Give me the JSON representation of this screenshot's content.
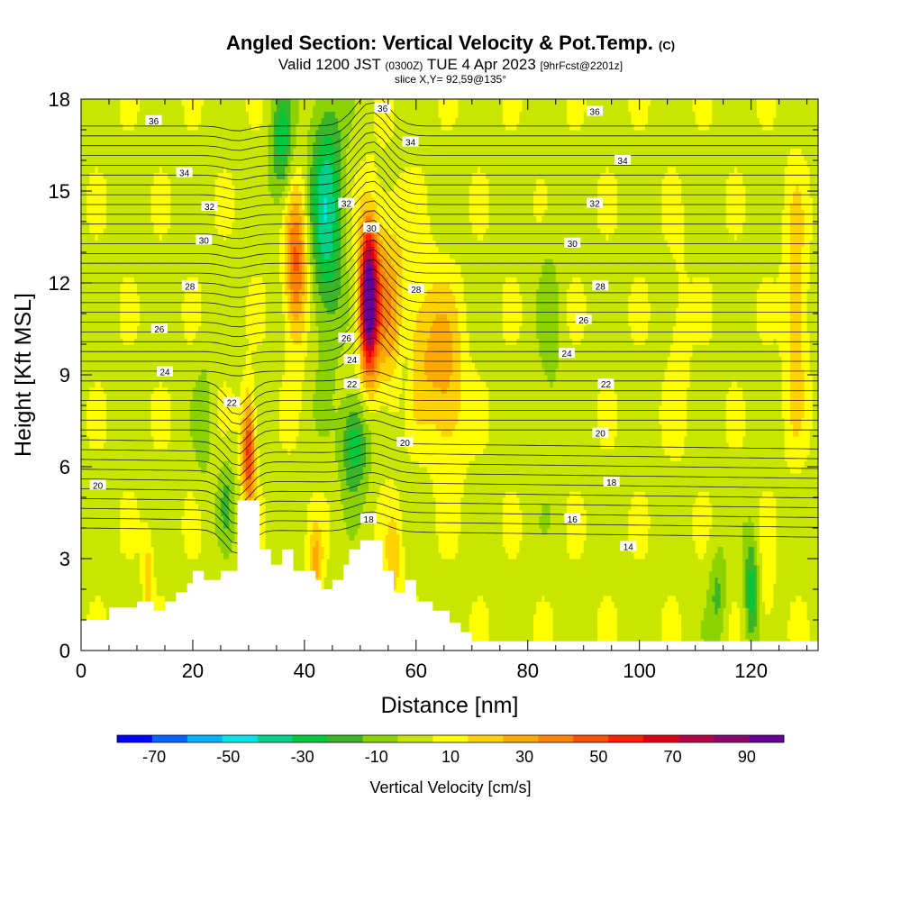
{
  "title": {
    "main": "Angled Section: Vertical Velocity & Pot.Temp.",
    "main_suffix": "(C)",
    "valid_prefix": "Valid 1200 JST",
    "valid_utc": "(0300Z)",
    "valid_date": "TUE 4 Apr 2023",
    "forecast": "[9hrFcst@2201z]",
    "slice": "slice X,Y= 92,59@135°"
  },
  "chart_data": {
    "type": "heatmap",
    "xlabel": "Distance [nm]",
    "ylabel": "Height [Kft MSL]",
    "xlim": [
      0,
      132
    ],
    "ylim": [
      0,
      18
    ],
    "x_ticks": [
      "0",
      "20",
      "40",
      "60",
      "80",
      "100",
      "120"
    ],
    "y_ticks": [
      "0",
      "3",
      "6",
      "9",
      "12",
      "15",
      "18"
    ],
    "x_tick_values": [
      0,
      20,
      40,
      60,
      80,
      100,
      120
    ],
    "y_tick_values": [
      0,
      3,
      6,
      9,
      12,
      15,
      18
    ],
    "colorbar": {
      "title": "Vertical Velocity [cm/s]",
      "labels": [
        "-70",
        "-50",
        "-30",
        "-10",
        "10",
        "30",
        "50",
        "70",
        "90"
      ],
      "colors": [
        "#0000ff",
        "#0064ff",
        "#00b4ff",
        "#00e6e6",
        "#00d28c",
        "#00c83c",
        "#3cb428",
        "#8cd200",
        "#c8e600",
        "#ffff00",
        "#ffd200",
        "#ffaa00",
        "#ff8200",
        "#ff5000",
        "#ff1e00",
        "#dc0014",
        "#b40046",
        "#8c006e",
        "#640096"
      ],
      "range": [
        -80,
        100
      ]
    },
    "isentrope_labels": [
      {
        "x": 13,
        "y": 17.3,
        "label": "36"
      },
      {
        "x": 54,
        "y": 17.7,
        "label": "36"
      },
      {
        "x": 92,
        "y": 17.6,
        "label": "36"
      },
      {
        "x": 18.5,
        "y": 15.6,
        "label": "34"
      },
      {
        "x": 59,
        "y": 16.6,
        "label": "34"
      },
      {
        "x": 97,
        "y": 16.0,
        "label": "34"
      },
      {
        "x": 23,
        "y": 14.5,
        "label": "32"
      },
      {
        "x": 47.5,
        "y": 14.6,
        "label": "32"
      },
      {
        "x": 92,
        "y": 14.6,
        "label": "32"
      },
      {
        "x": 22,
        "y": 13.4,
        "label": "30"
      },
      {
        "x": 52,
        "y": 13.8,
        "label": "30"
      },
      {
        "x": 88,
        "y": 13.3,
        "label": "30"
      },
      {
        "x": 19.5,
        "y": 11.9,
        "label": "28"
      },
      {
        "x": 60,
        "y": 11.8,
        "label": "28"
      },
      {
        "x": 93,
        "y": 11.9,
        "label": "28"
      },
      {
        "x": 14,
        "y": 10.5,
        "label": "26"
      },
      {
        "x": 47.5,
        "y": 10.2,
        "label": "26"
      },
      {
        "x": 90,
        "y": 10.8,
        "label": "26"
      },
      {
        "x": 15,
        "y": 9.1,
        "label": "24"
      },
      {
        "x": 48.5,
        "y": 9.5,
        "label": "24"
      },
      {
        "x": 87,
        "y": 9.7,
        "label": "24"
      },
      {
        "x": 27,
        "y": 8.1,
        "label": "22"
      },
      {
        "x": 48.5,
        "y": 8.7,
        "label": "22"
      },
      {
        "x": 94,
        "y": 8.7,
        "label": "22"
      },
      {
        "x": 3,
        "y": 5.4,
        "label": "20"
      },
      {
        "x": 58,
        "y": 6.8,
        "label": "20"
      },
      {
        "x": 93,
        "y": 7.1,
        "label": "20"
      },
      {
        "x": 95,
        "y": 5.5,
        "label": "18"
      },
      {
        "x": 51.5,
        "y": 4.3,
        "label": "18"
      },
      {
        "x": 88,
        "y": 4.3,
        "label": "16"
      },
      {
        "x": 98,
        "y": 3.4,
        "label": "14"
      }
    ]
  }
}
